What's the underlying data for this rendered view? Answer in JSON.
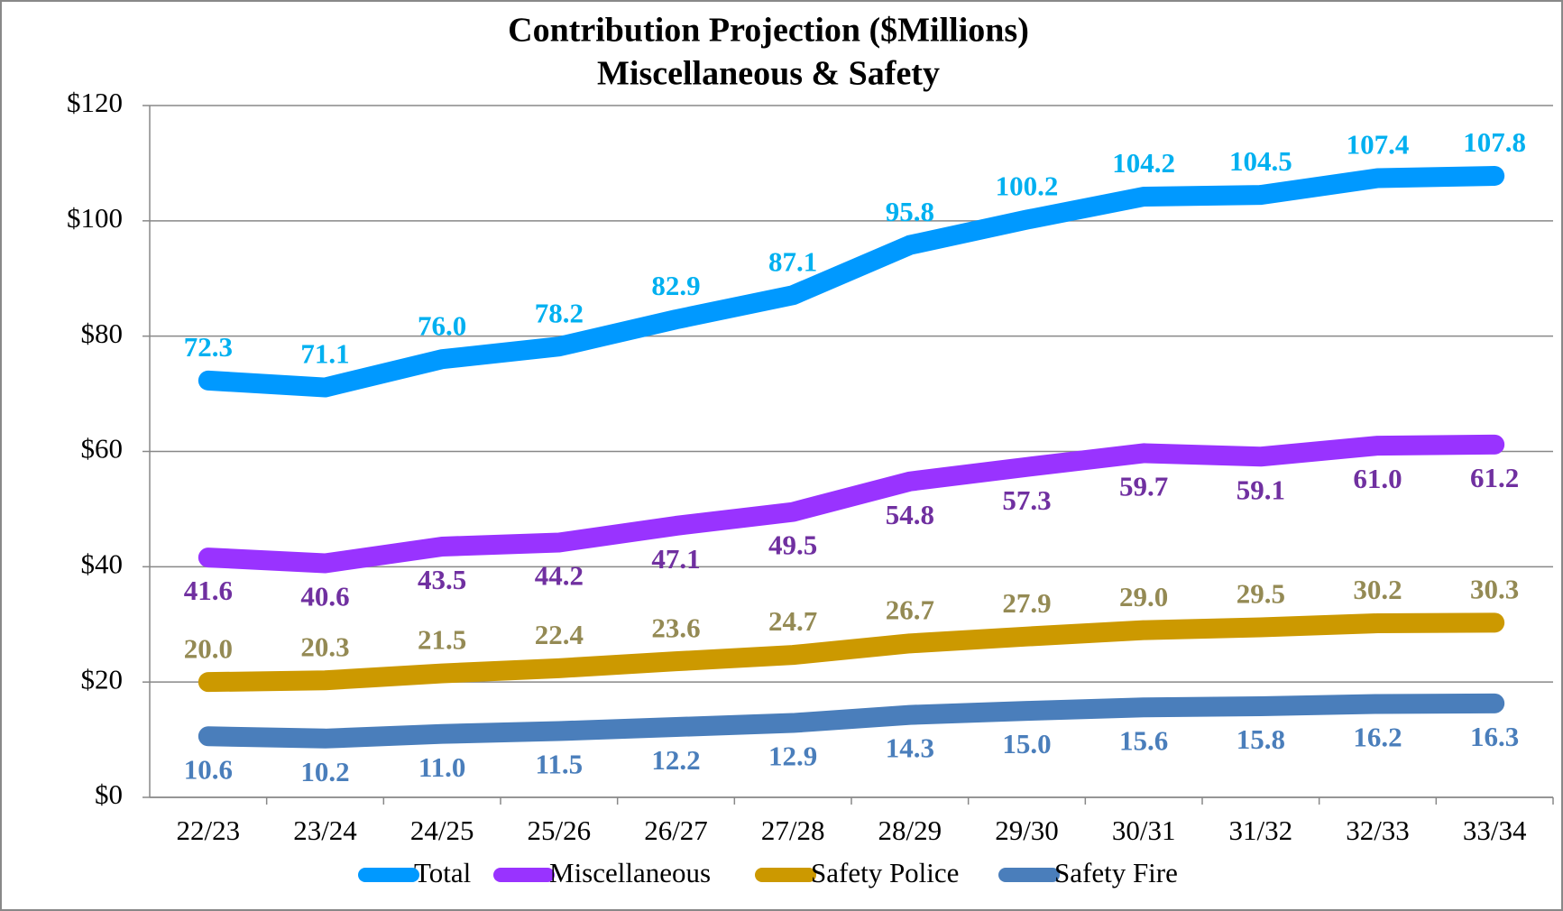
{
  "chart_data": {
    "type": "line",
    "title": [
      "Contribution Projection ($Millions)",
      "Miscellaneous & Safety"
    ],
    "categories": [
      "22/23",
      "23/24",
      "24/25",
      "25/26",
      "26/27",
      "27/28",
      "28/29",
      "29/30",
      "30/31",
      "31/32",
      "32/33",
      "33/34"
    ],
    "series": [
      {
        "name": "Total",
        "color": "#0099ff",
        "label_color": "#00b0f0",
        "values": [
          72.3,
          71.1,
          76.0,
          78.2,
          82.9,
          87.1,
          95.8,
          100.2,
          104.2,
          104.5,
          107.4,
          107.8
        ],
        "value_labels": [
          "72.3",
          "71.1",
          "76.0",
          "78.2",
          "82.9",
          "87.1",
          "95.8",
          "100.2",
          "104.2",
          "104.5",
          "107.4",
          "107.8"
        ]
      },
      {
        "name": "Miscellaneous",
        "color": "#9933ff",
        "label_color": "#7030a0",
        "values": [
          41.6,
          40.6,
          43.5,
          44.2,
          47.1,
          49.5,
          54.8,
          57.3,
          59.7,
          59.1,
          61.0,
          61.2
        ],
        "value_labels": [
          "41.6",
          "40.6",
          "43.5",
          "44.2",
          "47.1",
          "49.5",
          "54.8",
          "57.3",
          "59.7",
          "59.1",
          "61.0",
          "61.2"
        ]
      },
      {
        "name": "Safety Police",
        "color": "#cc9900",
        "label_color": "#948a54",
        "values": [
          20.0,
          20.3,
          21.5,
          22.4,
          23.6,
          24.7,
          26.7,
          27.9,
          29.0,
          29.5,
          30.2,
          30.3
        ],
        "value_labels": [
          "20.0",
          "20.3",
          "21.5",
          "22.4",
          "23.6",
          "24.7",
          "26.7",
          "27.9",
          "29.0",
          "29.5",
          "30.2",
          "30.3"
        ]
      },
      {
        "name": "Safety Fire",
        "color": "#4a7ebb",
        "label_color": "#4a7ebb",
        "values": [
          10.6,
          10.2,
          11.0,
          11.5,
          12.2,
          12.9,
          14.3,
          15.0,
          15.6,
          15.8,
          16.2,
          16.3
        ],
        "value_labels": [
          "10.6",
          "10.2",
          "11.0",
          "11.5",
          "12.2",
          "12.9",
          "14.3",
          "15.0",
          "15.6",
          "15.8",
          "16.2",
          "16.3"
        ]
      }
    ],
    "ylim": [
      0,
      120
    ],
    "yticks": [
      {
        "value": 0,
        "label": "$0"
      },
      {
        "value": 20,
        "label": "$20"
      },
      {
        "value": 40,
        "label": "$40"
      },
      {
        "value": 60,
        "label": "$60"
      },
      {
        "value": 80,
        "label": "$80"
      },
      {
        "value": 100,
        "label": "$100"
      },
      {
        "value": 120,
        "label": "$120"
      }
    ],
    "grid": true,
    "legend": "bottom"
  }
}
